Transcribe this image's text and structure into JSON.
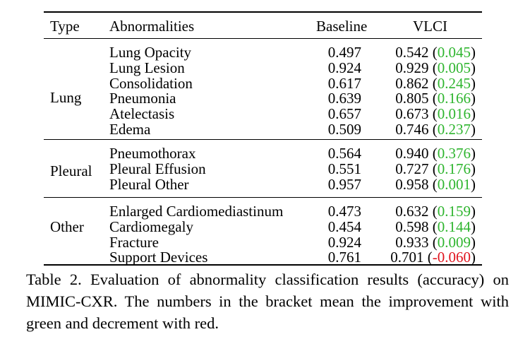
{
  "table": {
    "headers": {
      "type": "Type",
      "abnormalities": "Abnormalities",
      "baseline": "Baseline",
      "vlci": "VLCI"
    },
    "groups": [
      {
        "type": "Lung",
        "rows": [
          {
            "name": "Lung Opacity",
            "baseline": "0.497",
            "vlci": "0.542",
            "delta": "0.045",
            "sign": "pos"
          },
          {
            "name": "Lung Lesion",
            "baseline": "0.924",
            "vlci": "0.929",
            "delta": "0.005",
            "sign": "pos"
          },
          {
            "name": "Consolidation",
            "baseline": "0.617",
            "vlci": "0.862",
            "delta": "0.245",
            "sign": "pos"
          },
          {
            "name": "Pneumonia",
            "baseline": "0.639",
            "vlci": "0.805",
            "delta": "0.166",
            "sign": "pos"
          },
          {
            "name": "Atelectasis",
            "baseline": "0.657",
            "vlci": "0.673",
            "delta": "0.016",
            "sign": "pos"
          },
          {
            "name": "Edema",
            "baseline": "0.509",
            "vlci": "0.746",
            "delta": "0.237",
            "sign": "pos"
          }
        ]
      },
      {
        "type": "Pleural",
        "rows": [
          {
            "name": "Pneumothorax",
            "baseline": "0.564",
            "vlci": "0.940",
            "delta": "0.376",
            "sign": "pos"
          },
          {
            "name": "Pleural Effusion",
            "baseline": "0.551",
            "vlci": "0.727",
            "delta": "0.176",
            "sign": "pos"
          },
          {
            "name": "Pleural Other",
            "baseline": "0.957",
            "vlci": "0.958",
            "delta": "0.001",
            "sign": "pos"
          }
        ]
      },
      {
        "type": "Other",
        "rows": [
          {
            "name": "Enlarged Cardiomediastinum",
            "baseline": "0.473",
            "vlci": "0.632",
            "delta": "0.159",
            "sign": "pos"
          },
          {
            "name": "Cardiomegaly",
            "baseline": "0.454",
            "vlci": "0.598",
            "delta": "0.144",
            "sign": "pos"
          },
          {
            "name": "Fracture",
            "baseline": "0.924",
            "vlci": "0.933",
            "delta": "0.009",
            "sign": "pos"
          },
          {
            "name": "Support Devices",
            "baseline": "0.761",
            "vlci": "0.701",
            "delta": "-0.060",
            "sign": "neg"
          }
        ]
      }
    ]
  },
  "caption": "Table 2. Evaluation of abnormality classification results (accuracy) on MIMIC-CXR. The numbers in the bracket mean the improvement with green and decrement with red."
}
